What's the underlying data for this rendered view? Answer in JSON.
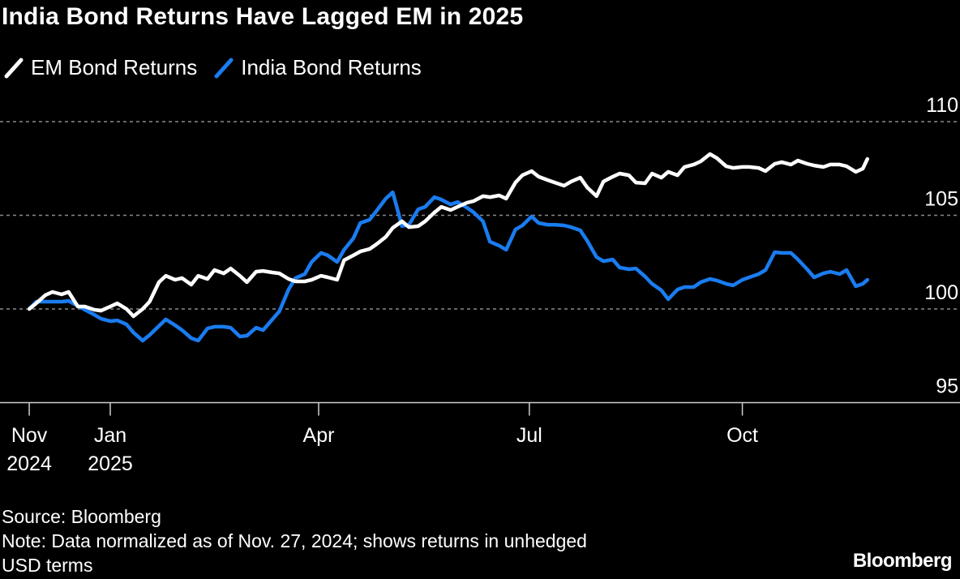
{
  "chart_data": {
    "type": "line",
    "title": "India Bond Returns Have Lagged EM in 2025",
    "xlabel": "",
    "ylabel": "",
    "ylim": [
      95,
      110
    ],
    "y_ticks": [
      95,
      100,
      105,
      110
    ],
    "y_axis_side": "right",
    "grid": "dotted horizontal",
    "legend_placement": "top-left",
    "x_ticks": [
      {
        "date": "2024-11-27",
        "label": "Nov",
        "sublabel": "2024"
      },
      {
        "date": "2025-01-01",
        "label": "Jan",
        "sublabel": "2025"
      },
      {
        "date": "2025-04-01",
        "label": "Apr",
        "sublabel": ""
      },
      {
        "date": "2025-07-01",
        "label": "Jul",
        "sublabel": ""
      },
      {
        "date": "2025-10-01",
        "label": "Oct",
        "sublabel": ""
      }
    ],
    "x": [
      "2024-11-27",
      "2024-11-30",
      "2024-12-04",
      "2024-12-07",
      "2024-12-11",
      "2024-12-14",
      "2024-12-18",
      "2024-12-21",
      "2024-12-25",
      "2024-12-28",
      "2025-01-01",
      "2025-01-04",
      "2025-01-08",
      "2025-01-11",
      "2025-01-15",
      "2025-01-18",
      "2025-01-22",
      "2025-01-25",
      "2025-01-29",
      "2025-02-01",
      "2025-02-05",
      "2025-02-08",
      "2025-02-12",
      "2025-02-15",
      "2025-02-19",
      "2025-02-22",
      "2025-02-26",
      "2025-03-01",
      "2025-03-05",
      "2025-03-08",
      "2025-03-12",
      "2025-03-15",
      "2025-03-19",
      "2025-03-22",
      "2025-03-26",
      "2025-03-29",
      "2025-04-02",
      "2025-04-05",
      "2025-04-09",
      "2025-04-12",
      "2025-04-16",
      "2025-04-19",
      "2025-04-23",
      "2025-04-26",
      "2025-04-30",
      "2025-05-03",
      "2025-05-07",
      "2025-05-10",
      "2025-05-14",
      "2025-05-17",
      "2025-05-21",
      "2025-05-24",
      "2025-05-28",
      "2025-05-31",
      "2025-06-04",
      "2025-06-07",
      "2025-06-11",
      "2025-06-14",
      "2025-06-18",
      "2025-06-21",
      "2025-06-25",
      "2025-06-28",
      "2025-07-02",
      "2025-07-05",
      "2025-07-09",
      "2025-07-12",
      "2025-07-16",
      "2025-07-19",
      "2025-07-23",
      "2025-07-26",
      "2025-07-30",
      "2025-08-02",
      "2025-08-06",
      "2025-08-09",
      "2025-08-13",
      "2025-08-16",
      "2025-08-20",
      "2025-08-23",
      "2025-08-27",
      "2025-08-30",
      "2025-09-03",
      "2025-09-06",
      "2025-09-10",
      "2025-09-13",
      "2025-09-17",
      "2025-09-20",
      "2025-09-24",
      "2025-09-27",
      "2025-10-01",
      "2025-10-04",
      "2025-10-08",
      "2025-10-11",
      "2025-10-15",
      "2025-10-18",
      "2025-10-22",
      "2025-10-25",
      "2025-10-29",
      "2025-11-01",
      "2025-11-05",
      "2025-11-08",
      "2025-11-12",
      "2025-11-15",
      "2025-11-19",
      "2025-11-22",
      "2025-11-24"
    ],
    "series": [
      {
        "name": "EM Bond Returns",
        "color": "#ffffff",
        "values": [
          100.0,
          100.3,
          100.74,
          100.91,
          100.78,
          100.91,
          100.13,
          100.13,
          99.96,
          99.91,
          100.13,
          100.3,
          100.0,
          99.61,
          100.0,
          100.39,
          101.43,
          101.77,
          101.56,
          101.65,
          101.3,
          101.77,
          101.6,
          102.08,
          101.9,
          102.16,
          101.77,
          101.43,
          101.99,
          102.03,
          101.95,
          101.9,
          101.6,
          101.47,
          101.47,
          101.56,
          101.77,
          101.69,
          101.56,
          102.6,
          102.86,
          103.07,
          103.2,
          103.46,
          103.85,
          104.33,
          104.68,
          104.37,
          104.42,
          104.68,
          105.15,
          105.45,
          105.28,
          105.45,
          105.67,
          105.76,
          106.02,
          105.97,
          106.06,
          105.89,
          106.75,
          107.14,
          107.36,
          107.06,
          106.88,
          106.75,
          106.58,
          106.8,
          107.01,
          106.49,
          106.02,
          106.8,
          107.06,
          107.23,
          107.14,
          106.75,
          106.71,
          107.23,
          107.01,
          107.32,
          107.14,
          107.58,
          107.71,
          107.88,
          108.27,
          108.05,
          107.62,
          107.53,
          107.58,
          107.58,
          107.53,
          107.36,
          107.75,
          107.84,
          107.71,
          107.92,
          107.75,
          107.66,
          107.58,
          107.71,
          107.71,
          107.62,
          107.32,
          107.49,
          108.01
        ]
      },
      {
        "name": "India Bond Returns",
        "color": "#1a7cf0",
        "values": [
          100.0,
          100.39,
          100.39,
          100.39,
          100.39,
          100.43,
          100.17,
          99.96,
          99.7,
          99.48,
          99.35,
          99.39,
          99.18,
          98.74,
          98.31,
          98.61,
          99.09,
          99.44,
          99.13,
          98.87,
          98.44,
          98.31,
          98.96,
          99.05,
          99.05,
          99.0,
          98.53,
          98.57,
          99.0,
          98.87,
          99.44,
          99.87,
          101.04,
          101.65,
          101.86,
          102.51,
          102.99,
          102.86,
          102.51,
          103.16,
          103.77,
          104.59,
          104.76,
          105.24,
          105.89,
          106.23,
          104.42,
          104.5,
          105.32,
          105.45,
          105.97,
          105.84,
          105.58,
          105.71,
          105.41,
          105.15,
          104.68,
          103.59,
          103.38,
          103.16,
          104.24,
          104.46,
          104.94,
          104.59,
          104.5,
          104.5,
          104.46,
          104.37,
          104.2,
          103.64,
          102.77,
          102.55,
          102.64,
          102.21,
          102.12,
          102.16,
          101.73,
          101.34,
          101.0,
          100.52,
          101.04,
          101.17,
          101.17,
          101.43,
          101.6,
          101.52,
          101.34,
          101.26,
          101.56,
          101.69,
          101.86,
          102.08,
          103.03,
          102.99,
          102.99,
          102.64,
          102.12,
          101.69,
          101.9,
          101.99,
          101.86,
          102.08,
          101.21,
          101.34,
          101.56
        ]
      }
    ]
  },
  "footer": {
    "source": "Source: Bloomberg",
    "note_line1": "Note: Data normalized as of Nov. 27, 2024; shows returns in unhedged",
    "note_line2": "USD terms",
    "logo": "Bloomberg"
  }
}
